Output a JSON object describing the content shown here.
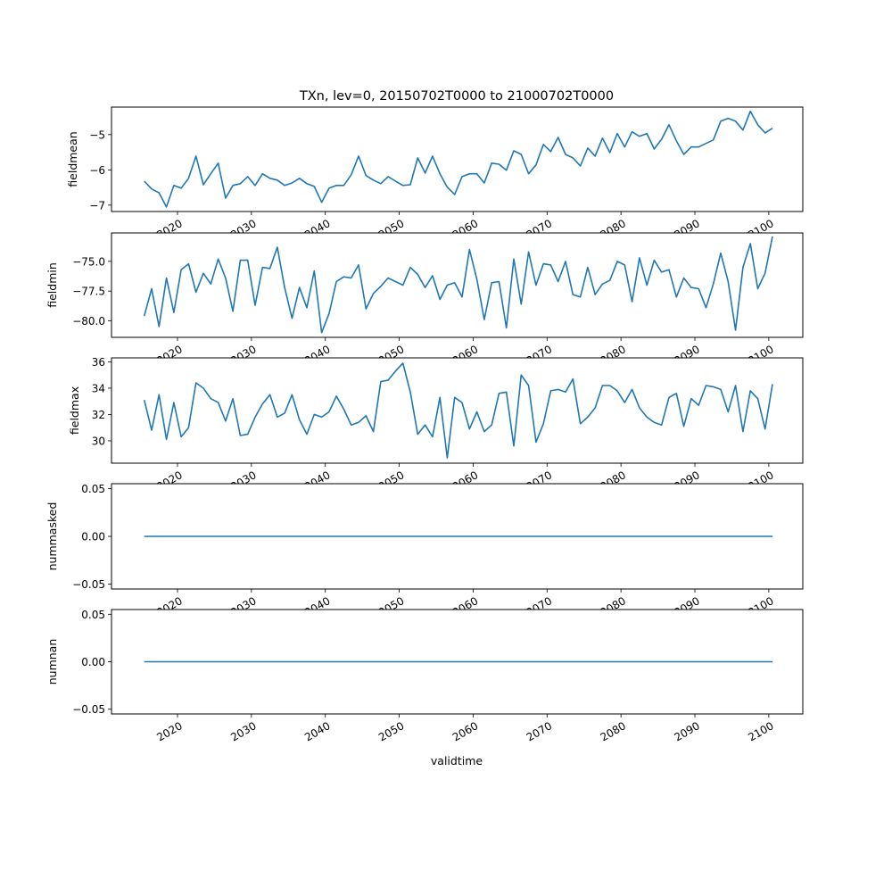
{
  "chart_data": {
    "type": "line",
    "title": "TXn, lev=0, 20150702T0000 to 21000702T0000",
    "xlabel": "validtime",
    "line_color": "#1f77b4",
    "x_start_year": 2015,
    "x_end_year": 2100,
    "xlim": [
      2011.07,
      2104.6
    ],
    "x_ticks": [
      2020,
      2030,
      2040,
      2050,
      2060,
      2070,
      2080,
      2090,
      2100
    ],
    "x_tick_labels": [
      "2020",
      "2030",
      "2040",
      "2050",
      "2060",
      "2070",
      "2080",
      "2090",
      "2100"
    ],
    "panels": [
      {
        "ylabel": "fieldmean",
        "ylim": [
          -7.18,
          -4.22
        ],
        "y_ticks": [
          -7,
          -6,
          -5
        ],
        "y_tick_labels": [
          "−7",
          "−6",
          "−5"
        ],
        "values": [
          -6.32,
          -6.54,
          -6.65,
          -7.05,
          -6.44,
          -6.52,
          -6.24,
          -5.61,
          -6.42,
          -6.11,
          -5.81,
          -6.8,
          -6.44,
          -6.39,
          -6.19,
          -6.44,
          -6.11,
          -6.24,
          -6.29,
          -6.44,
          -6.37,
          -6.24,
          -6.39,
          -6.47,
          -6.92,
          -6.52,
          -6.44,
          -6.44,
          -6.14,
          -5.61,
          -6.16,
          -6.29,
          -6.39,
          -6.19,
          -6.32,
          -6.44,
          -6.42,
          -5.66,
          -6.09,
          -5.61,
          -6.11,
          -6.49,
          -6.7,
          -6.19,
          -6.11,
          -6.11,
          -6.37,
          -5.81,
          -5.84,
          -6.01,
          -5.46,
          -5.56,
          -6.11,
          -5.86,
          -5.28,
          -5.48,
          -5.08,
          -5.56,
          -5.66,
          -5.89,
          -5.38,
          -5.61,
          -5.1,
          -5.51,
          -4.97,
          -5.35,
          -4.92,
          -5.05,
          -4.97,
          -5.41,
          -5.13,
          -4.72,
          -5.18,
          -5.56,
          -5.35,
          -5.35,
          -5.25,
          -5.15,
          -4.62,
          -4.54,
          -4.62,
          -4.87,
          -4.34,
          -4.72,
          -4.95,
          -4.82
        ]
      },
      {
        "ylabel": "fieldmin",
        "ylim": [
          -81.4,
          -72.6
        ],
        "y_ticks": [
          -80,
          -77.5,
          -75
        ],
        "y_tick_labels": [
          "−80.0",
          "−77.5",
          "−75.0"
        ],
        "values": [
          -79.6,
          -77.3,
          -80.5,
          -76.4,
          -79.3,
          -75.7,
          -75.2,
          -77.6,
          -76.0,
          -76.9,
          -74.8,
          -76.4,
          -79.2,
          -74.9,
          -74.9,
          -78.7,
          -75.5,
          -75.6,
          -73.8,
          -77.2,
          -79.8,
          -77.2,
          -78.9,
          -75.8,
          -81.0,
          -79.4,
          -76.7,
          -76.3,
          -76.4,
          -75.3,
          -79.0,
          -77.7,
          -77.1,
          -76.4,
          -76.7,
          -77.0,
          -75.5,
          -76.1,
          -77.2,
          -76.2,
          -78.2,
          -77.0,
          -76.8,
          -78.0,
          -74.0,
          -76.5,
          -79.9,
          -76.8,
          -76.7,
          -80.6,
          -74.8,
          -78.6,
          -74.2,
          -77.0,
          -75.2,
          -75.3,
          -76.7,
          -75.0,
          -77.8,
          -78.0,
          -75.5,
          -77.8,
          -76.9,
          -76.6,
          -75.0,
          -75.3,
          -78.4,
          -74.7,
          -77.0,
          -74.9,
          -75.9,
          -75.7,
          -78.0,
          -76.4,
          -77.2,
          -77.3,
          -78.9,
          -76.9,
          -74.3,
          -76.7,
          -80.8,
          -75.5,
          -73.5,
          -77.3,
          -76.0,
          -72.9
        ]
      },
      {
        "ylabel": "fieldmax",
        "ylim": [
          28.3,
          36.3
        ],
        "y_ticks": [
          30,
          32,
          34,
          36
        ],
        "y_tick_labels": [
          "30",
          "32",
          "34",
          "36"
        ],
        "values": [
          33.1,
          30.8,
          33.5,
          30.1,
          32.9,
          30.3,
          31.0,
          34.4,
          34.0,
          33.2,
          32.9,
          31.5,
          33.2,
          30.4,
          30.5,
          31.8,
          32.8,
          33.5,
          31.8,
          32.1,
          33.5,
          31.6,
          30.5,
          32.0,
          31.8,
          32.2,
          33.4,
          32.4,
          31.2,
          31.4,
          31.9,
          30.7,
          34.5,
          34.6,
          35.3,
          35.9,
          33.7,
          30.5,
          31.2,
          30.3,
          33.3,
          28.7,
          33.3,
          32.9,
          30.9,
          32.2,
          30.7,
          31.2,
          33.6,
          33.7,
          29.6,
          35.0,
          34.2,
          29.9,
          31.3,
          33.8,
          33.9,
          33.7,
          34.7,
          31.3,
          31.8,
          32.5,
          34.2,
          34.2,
          33.8,
          32.9,
          33.9,
          32.5,
          31.8,
          31.4,
          31.2,
          33.3,
          33.6,
          31.1,
          33.2,
          32.7,
          34.2,
          34.1,
          33.9,
          32.2,
          34.2,
          30.7,
          33.8,
          33.2,
          30.9,
          34.3
        ]
      },
      {
        "ylabel": "nummasked",
        "ylim": [
          -0.055,
          0.055
        ],
        "y_ticks": [
          -0.05,
          0,
          0.05
        ],
        "y_tick_labels": [
          "−0.05",
          "0.00",
          "0.05"
        ],
        "constant_value": 0
      },
      {
        "ylabel": "numnan",
        "ylim": [
          -0.055,
          0.055
        ],
        "y_ticks": [
          -0.05,
          0,
          0.05
        ],
        "y_tick_labels": [
          "−0.05",
          "0.00",
          "0.05"
        ],
        "constant_value": 0
      }
    ]
  }
}
